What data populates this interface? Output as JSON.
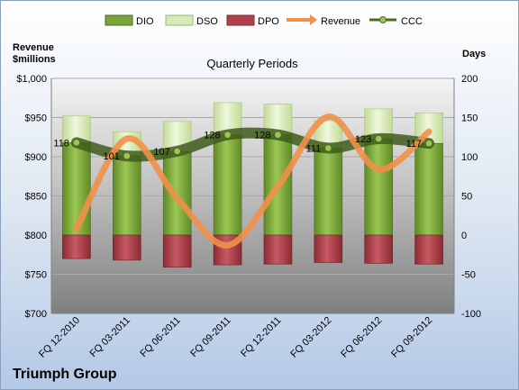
{
  "chart_data": {
    "type": "bar",
    "title": "Quarterly Periods",
    "company": "Triumph Group",
    "left_axis_label_line1": "Revenue",
    "left_axis_label_line2": "$millions",
    "right_axis_label": "Days",
    "categories": [
      "FQ 12-2010",
      "FQ 03-2011",
      "FQ 06-2011",
      "FQ 09-2011",
      "FQ 12-2011",
      "FQ 03-2012",
      "FQ 06-2012",
      "FQ 09-2012"
    ],
    "left_axis": {
      "min": 700,
      "max": 1000,
      "step": 50,
      "ticks": [
        "$700",
        "$750",
        "$800",
        "$850",
        "$900",
        "$950",
        "$1,000"
      ]
    },
    "right_axis": {
      "min": -100,
      "max": 200,
      "step": 50,
      "ticks": [
        "-100",
        "-50",
        "0",
        "50",
        "100",
        "150",
        "200"
      ]
    },
    "series": [
      {
        "name": "DIO",
        "axis": "right",
        "kind": "stacked-bar",
        "color": "#7aa33a",
        "values": [
          118,
          101,
          107,
          128,
          128,
          111,
          123,
          117
        ]
      },
      {
        "name": "DSO",
        "axis": "right",
        "kind": "stacked-bar",
        "color": "#d7e9b6",
        "values": [
          34,
          31,
          38,
          41,
          39,
          35,
          38,
          39
        ]
      },
      {
        "name": "DPO",
        "axis": "right",
        "kind": "negative-bar",
        "color": "#b0404a",
        "values": [
          -30,
          -32,
          -41,
          -38,
          -37,
          -35,
          -36,
          -37
        ]
      },
      {
        "name": "Revenue",
        "axis": "left",
        "kind": "smooth-line",
        "color": "#f0904a",
        "values": [
          808,
          923,
          847,
          787,
          862,
          951,
          884,
          932
        ]
      },
      {
        "name": "CCC",
        "axis": "right",
        "kind": "smooth-line-markers",
        "color": "#4f6b22",
        "values": [
          118,
          101,
          107,
          128,
          128,
          111,
          123,
          117
        ]
      }
    ],
    "ccc_labels": [
      "118",
      "101",
      "107",
      "128",
      "128",
      "111",
      "123",
      "117"
    ],
    "legend": {
      "placement": "top"
    }
  }
}
